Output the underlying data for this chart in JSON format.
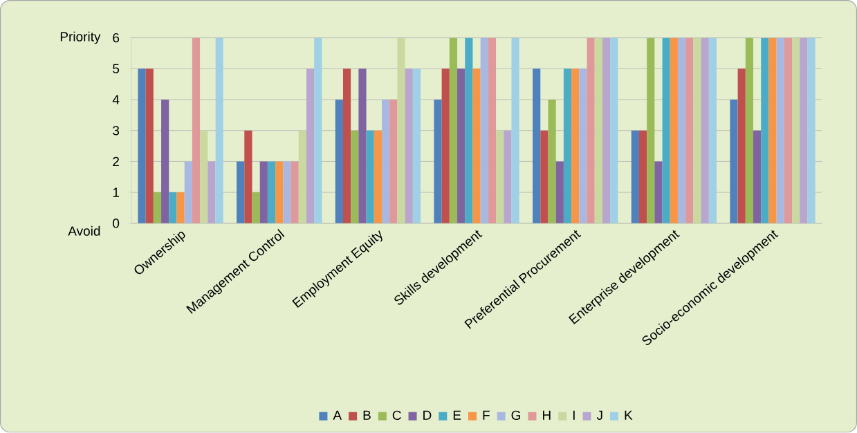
{
  "chart_data": {
    "type": "bar",
    "categories": [
      "Ownership",
      "Management Control",
      "Employment Equity",
      "Skills development",
      "Preferential Procurement",
      "Enterprise development",
      "Socio-economic development"
    ],
    "series": [
      {
        "name": "A",
        "color": "#4f81bd",
        "values": [
          5,
          2,
          4,
          4,
          5,
          3,
          4
        ]
      },
      {
        "name": "B",
        "color": "#c0504d",
        "values": [
          5,
          3,
          5,
          5,
          3,
          3,
          5
        ]
      },
      {
        "name": "C",
        "color": "#9bbb59",
        "values": [
          1,
          1,
          3,
          6,
          4,
          6,
          6
        ]
      },
      {
        "name": "D",
        "color": "#8064a2",
        "values": [
          4,
          2,
          5,
          5,
          2,
          2,
          3
        ]
      },
      {
        "name": "E",
        "color": "#4bacc6",
        "values": [
          1,
          2,
          3,
          6,
          5,
          6,
          6
        ]
      },
      {
        "name": "F",
        "color": "#f79646",
        "values": [
          1,
          2,
          3,
          5,
          5,
          6,
          6
        ]
      },
      {
        "name": "G",
        "color": "#a9b8e0",
        "values": [
          2,
          2,
          4,
          6,
          5,
          6,
          6
        ]
      },
      {
        "name": "H",
        "color": "#e0999a",
        "values": [
          6,
          2,
          4,
          6,
          6,
          6,
          6
        ]
      },
      {
        "name": "I",
        "color": "#c9d9a0",
        "values": [
          3,
          3,
          6,
          3,
          6,
          6,
          6
        ]
      },
      {
        "name": "J",
        "color": "#b8a6cf",
        "values": [
          2,
          5,
          5,
          3,
          6,
          6,
          6
        ]
      },
      {
        "name": "K",
        "color": "#9fd0e6",
        "values": [
          6,
          6,
          5,
          6,
          6,
          6,
          6
        ]
      }
    ],
    "ylim": [
      0,
      6
    ],
    "yticks": [
      0,
      1,
      2,
      3,
      4,
      5,
      6
    ],
    "grid": "y",
    "legend": "bottom",
    "annotations": [
      "Priority",
      "Avoid"
    ]
  }
}
